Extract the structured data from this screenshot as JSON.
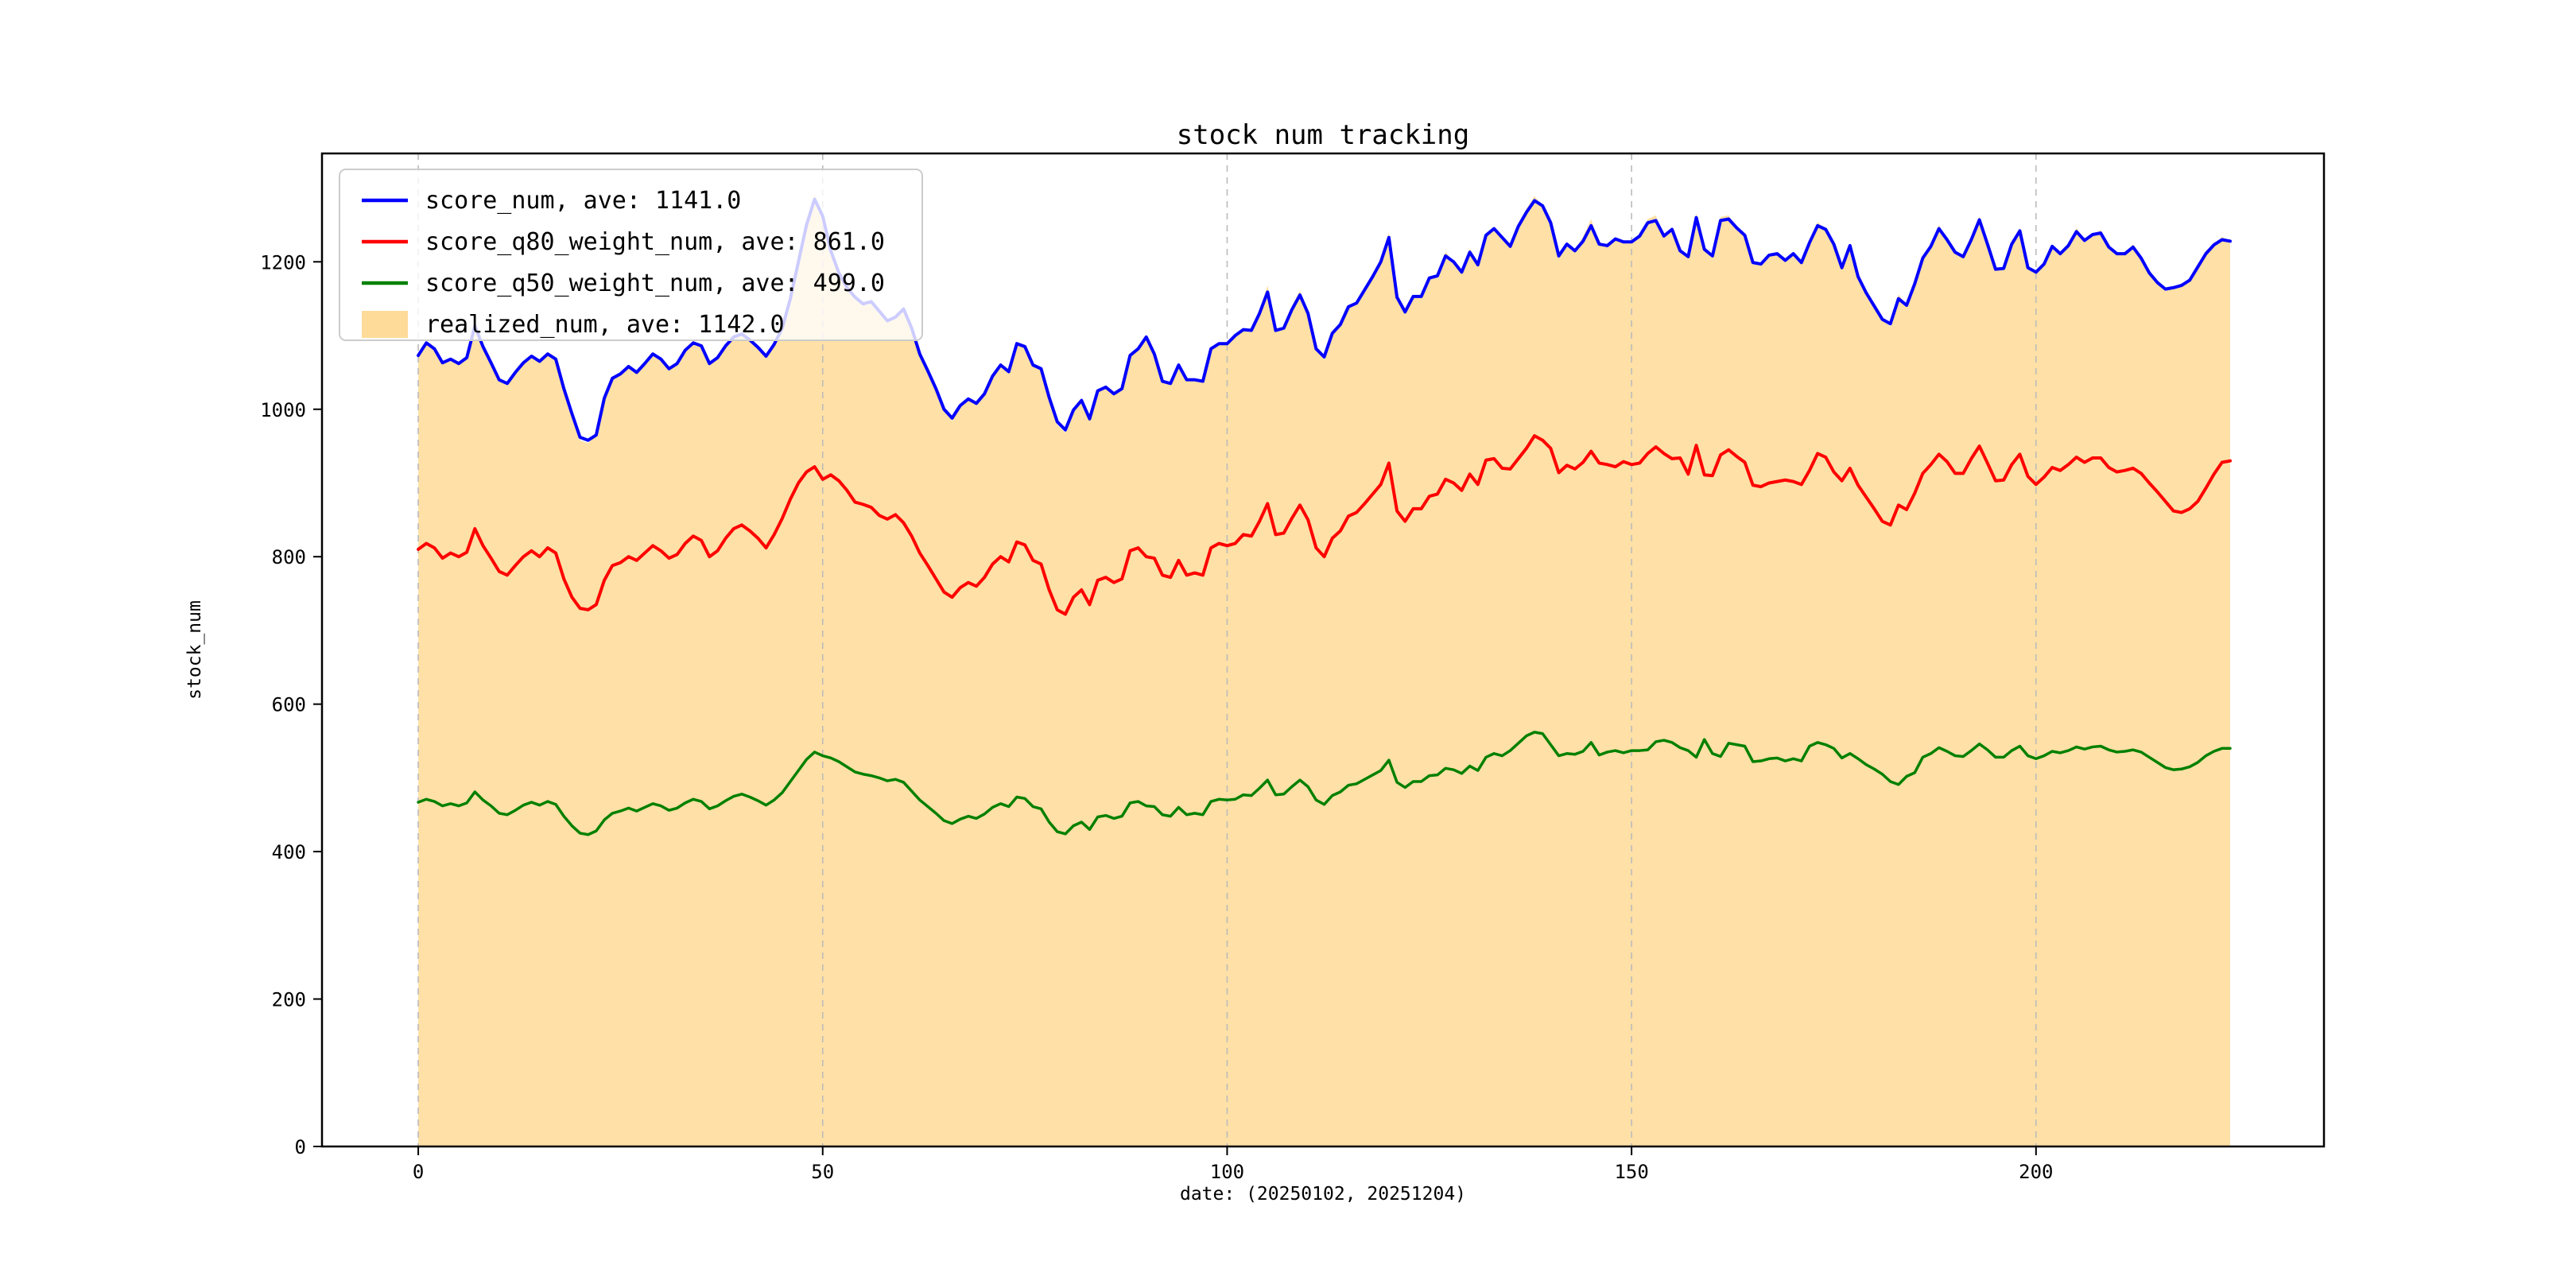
{
  "figure": {
    "title": "stock num tracking",
    "background": "#ffffff"
  },
  "axes": {
    "xlabel": "date: (20250102, 20251204)",
    "ylabel": "stock_num",
    "x_ticks": [
      0,
      50,
      100,
      150,
      200
    ],
    "y_ticks": [
      0,
      200,
      400,
      600,
      800,
      1000,
      1200
    ],
    "xlim": [
      -11.9,
      235.6
    ],
    "ylim": [
      0,
      1347
    ],
    "grid": "vertical-dashed",
    "grid_color": "#bbbbbb",
    "frame_color": "#000000"
  },
  "legend": {
    "position": "upper-left",
    "background": "rgba(255,255,255,0.8)",
    "border_color": "#cccccc",
    "items": [
      {
        "label": "score_num, ave: 1141.0",
        "color": "#0000ff",
        "swatch": "line"
      },
      {
        "label": "score_q80_weight_num, ave: 861.0",
        "color": "#ff0000",
        "swatch": "line"
      },
      {
        "label": "score_q50_weight_num, ave: 499.0",
        "color": "#008000",
        "swatch": "line"
      },
      {
        "label": "realized_num, ave: 1142.0",
        "color": "#ffa500",
        "swatch": "patch"
      }
    ]
  },
  "chart_data": {
    "type": "line",
    "title": "stock num tracking",
    "xlabel": "date: (20250102, 20251204)",
    "ylabel": "stock_num",
    "x_start": 0,
    "x_step": 1,
    "n_points": 225,
    "xlim": [
      -11.9,
      235.6
    ],
    "ylim": [
      0,
      1347
    ],
    "x_ticks": [
      0,
      50,
      100,
      150,
      200
    ],
    "y_ticks": [
      0,
      200,
      400,
      600,
      800,
      1000,
      1200
    ],
    "grid": "vertical-dashed",
    "legend_position": "upper-left",
    "series": [
      {
        "name": "score_num",
        "ave": 1141.0,
        "color": "#0000ff",
        "width": 4,
        "kind": "line",
        "values": [
          1073,
          1090,
          1082,
          1063,
          1068,
          1062,
          1070,
          1113,
          1085,
          1063,
          1040,
          1035,
          1050,
          1063,
          1072,
          1065,
          1075,
          1068,
          1028,
          994,
          962,
          958,
          965,
          1015,
          1042,
          1048,
          1058,
          1050,
          1062,
          1075,
          1068,
          1055,
          1062,
          1080,
          1090,
          1086,
          1062,
          1070,
          1086,
          1098,
          1102,
          1094,
          1084,
          1072,
          1088,
          1110,
          1150,
          1200,
          1250,
          1285,
          1262,
          1215,
          1185,
          1165,
          1152,
          1143,
          1146,
          1133,
          1120,
          1125,
          1136,
          1110,
          1075,
          1052,
          1028,
          1000,
          988,
          1005,
          1014,
          1008,
          1021,
          1045,
          1060,
          1051,
          1089,
          1085,
          1060,
          1055,
          1016,
          983,
          972,
          999,
          1012,
          987,
          1025,
          1030,
          1021,
          1028,
          1073,
          1082,
          1098,
          1075,
          1038,
          1035,
          1060,
          1040,
          1040,
          1038,
          1082,
          1089,
          1089,
          1100,
          1108,
          1107,
          1130,
          1159,
          1107,
          1110,
          1135,
          1155,
          1130,
          1082,
          1071,
          1103,
          1115,
          1139,
          1144,
          1162,
          1180,
          1200,
          1233,
          1152,
          1132,
          1153,
          1153,
          1178,
          1181,
          1208,
          1200,
          1186,
          1213,
          1196,
          1236,
          1245,
          1233,
          1221,
          1248,
          1267,
          1283,
          1276,
          1253,
          1208,
          1224,
          1215,
          1228,
          1249,
          1224,
          1222,
          1231,
          1227,
          1227,
          1235,
          1253,
          1256,
          1235,
          1244,
          1215,
          1207,
          1260,
          1217,
          1208,
          1256,
          1258,
          1246,
          1236,
          1199,
          1197,
          1209,
          1211,
          1202,
          1211,
          1199,
          1226,
          1249,
          1244,
          1224,
          1192,
          1222,
          1180,
          1158,
          1140,
          1122,
          1116,
          1150,
          1141,
          1170,
          1205,
          1221,
          1245,
          1230,
          1213,
          1207,
          1230,
          1257,
          1224,
          1190,
          1191,
          1224,
          1242,
          1192,
          1186,
          1197,
          1221,
          1211,
          1222,
          1241,
          1229,
          1237,
          1239,
          1220,
          1211,
          1211,
          1220,
          1205,
          1185,
          1172,
          1163,
          1165,
          1168,
          1175,
          1193,
          1211,
          1223,
          1230,
          1228
        ]
      },
      {
        "name": "score_q80_weight_num",
        "ave": 861.0,
        "color": "#ff0000",
        "width": 4,
        "kind": "line",
        "values": [
          810,
          818,
          812,
          798,
          805,
          800,
          806,
          838,
          815,
          798,
          780,
          775,
          788,
          800,
          808,
          800,
          812,
          805,
          770,
          745,
          730,
          728,
          735,
          768,
          788,
          792,
          800,
          795,
          805,
          815,
          808,
          798,
          803,
          818,
          828,
          822,
          800,
          808,
          825,
          838,
          843,
          835,
          825,
          812,
          830,
          852,
          878,
          900,
          915,
          922,
          905,
          911,
          903,
          890,
          874,
          871,
          867,
          856,
          851,
          857,
          846,
          828,
          805,
          788,
          770,
          752,
          745,
          758,
          765,
          760,
          772,
          790,
          800,
          793,
          820,
          816,
          795,
          790,
          755,
          728,
          722,
          745,
          755,
          735,
          768,
          772,
          765,
          770,
          808,
          812,
          800,
          798,
          775,
          772,
          795,
          775,
          778,
          775,
          812,
          818,
          815,
          818,
          830,
          828,
          848,
          872,
          830,
          832,
          852,
          870,
          850,
          812,
          800,
          825,
          835,
          855,
          860,
          872,
          885,
          898,
          927,
          862,
          848,
          865,
          865,
          882,
          885,
          905,
          900,
          890,
          912,
          898,
          931,
          933,
          920,
          919,
          933,
          947,
          964,
          958,
          947,
          914,
          924,
          919,
          928,
          943,
          927,
          925,
          922,
          929,
          925,
          927,
          940,
          949,
          940,
          933,
          934,
          912,
          951,
          911,
          910,
          938,
          945,
          936,
          928,
          897,
          895,
          900,
          902,
          904,
          902,
          898,
          917,
          940,
          935,
          915,
          903,
          920,
          897,
          881,
          865,
          848,
          843,
          870,
          864,
          886,
          913,
          925,
          939,
          929,
          913,
          913,
          933,
          950,
          927,
          903,
          904,
          925,
          939,
          909,
          898,
          908,
          921,
          917,
          925,
          935,
          928,
          934,
          934,
          921,
          915,
          917,
          920,
          913,
          900,
          888,
          875,
          862,
          860,
          865,
          875,
          893,
          912,
          928,
          930
        ]
      },
      {
        "name": "score_q50_weight_num",
        "ave": 499.0,
        "color": "#008000",
        "width": 3.5,
        "kind": "line",
        "values": [
          467,
          471,
          468,
          462,
          465,
          462,
          466,
          481,
          470,
          462,
          452,
          450,
          456,
          463,
          467,
          463,
          468,
          464,
          448,
          435,
          425,
          423,
          428,
          443,
          452,
          455,
          459,
          455,
          460,
          465,
          462,
          456,
          459,
          466,
          471,
          468,
          458,
          462,
          469,
          475,
          478,
          474,
          469,
          463,
          470,
          480,
          495,
          510,
          525,
          535,
          530,
          527,
          522,
          515,
          508,
          505,
          503,
          500,
          496,
          498,
          494,
          482,
          470,
          461,
          452,
          442,
          438,
          444,
          448,
          445,
          451,
          460,
          465,
          461,
          474,
          472,
          461,
          458,
          440,
          427,
          424,
          435,
          440,
          430,
          447,
          449,
          445,
          448,
          466,
          468,
          462,
          461,
          450,
          448,
          460,
          450,
          452,
          450,
          468,
          471,
          470,
          471,
          477,
          476,
          486,
          497,
          477,
          478,
          488,
          497,
          488,
          470,
          464,
          476,
          481,
          490,
          492,
          498,
          504,
          510,
          524,
          494,
          487,
          495,
          495,
          503,
          504,
          513,
          511,
          506,
          516,
          510,
          528,
          533,
          530,
          537,
          547,
          557,
          562,
          560,
          545,
          530,
          533,
          532,
          536,
          548,
          531,
          535,
          537,
          534,
          537,
          537,
          538,
          549,
          551,
          548,
          541,
          537,
          528,
          552,
          533,
          529,
          547,
          545,
          543,
          522,
          523,
          526,
          527,
          523,
          526,
          523,
          543,
          548,
          545,
          540,
          527,
          533,
          526,
          518,
          512,
          505,
          495,
          491,
          502,
          507,
          528,
          533,
          541,
          536,
          530,
          529,
          537,
          546,
          538,
          528,
          528,
          537,
          543,
          530,
          526,
          530,
          536,
          534,
          537,
          542,
          539,
          542,
          543,
          538,
          535,
          536,
          538,
          535,
          528,
          521,
          514,
          511,
          512,
          515,
          521,
          530,
          536,
          540,
          540
        ]
      },
      {
        "name": "realized_num",
        "ave": 1142.0,
        "color": "#ffa500",
        "kind": "fill",
        "fill_opacity": 0.35,
        "values": [
          1073,
          1090,
          1082,
          1063,
          1068,
          1062,
          1070,
          1122,
          1085,
          1063,
          1040,
          1035,
          1050,
          1063,
          1072,
          1065,
          1075,
          1068,
          1028,
          994,
          958,
          954,
          965,
          1015,
          1042,
          1048,
          1058,
          1050,
          1062,
          1075,
          1068,
          1055,
          1062,
          1080,
          1090,
          1086,
          1062,
          1070,
          1086,
          1098,
          1102,
          1094,
          1084,
          1072,
          1088,
          1110,
          1155,
          1200,
          1256,
          1292,
          1262,
          1215,
          1185,
          1165,
          1152,
          1143,
          1146,
          1133,
          1120,
          1125,
          1136,
          1110,
          1075,
          1052,
          1028,
          1000,
          984,
          1005,
          1014,
          1008,
          1021,
          1045,
          1060,
          1051,
          1089,
          1085,
          1060,
          1055,
          1016,
          979,
          968,
          999,
          1012,
          987,
          1025,
          1030,
          1021,
          1028,
          1073,
          1082,
          1098,
          1075,
          1038,
          1035,
          1060,
          1040,
          1040,
          1038,
          1082,
          1089,
          1089,
          1100,
          1108,
          1107,
          1135,
          1168,
          1107,
          1110,
          1140,
          1161,
          1130,
          1082,
          1068,
          1103,
          1115,
          1139,
          1144,
          1162,
          1180,
          1205,
          1240,
          1152,
          1129,
          1153,
          1153,
          1178,
          1181,
          1214,
          1200,
          1186,
          1218,
          1196,
          1236,
          1245,
          1233,
          1221,
          1248,
          1272,
          1289,
          1276,
          1253,
          1208,
          1224,
          1215,
          1234,
          1258,
          1224,
          1222,
          1231,
          1227,
          1227,
          1235,
          1258,
          1263,
          1235,
          1244,
          1215,
          1207,
          1266,
          1217,
          1208,
          1261,
          1263,
          1246,
          1236,
          1196,
          1197,
          1209,
          1211,
          1202,
          1211,
          1199,
          1226,
          1254,
          1244,
          1224,
          1192,
          1222,
          1180,
          1158,
          1140,
          1122,
          1112,
          1156,
          1141,
          1170,
          1205,
          1221,
          1250,
          1230,
          1213,
          1207,
          1230,
          1262,
          1224,
          1190,
          1191,
          1224,
          1246,
          1192,
          1183,
          1197,
          1221,
          1211,
          1222,
          1246,
          1229,
          1237,
          1243,
          1220,
          1211,
          1211,
          1224,
          1205,
          1185,
          1172,
          1160,
          1165,
          1168,
          1175,
          1193,
          1215,
          1223,
          1234,
          1228
        ]
      }
    ]
  }
}
